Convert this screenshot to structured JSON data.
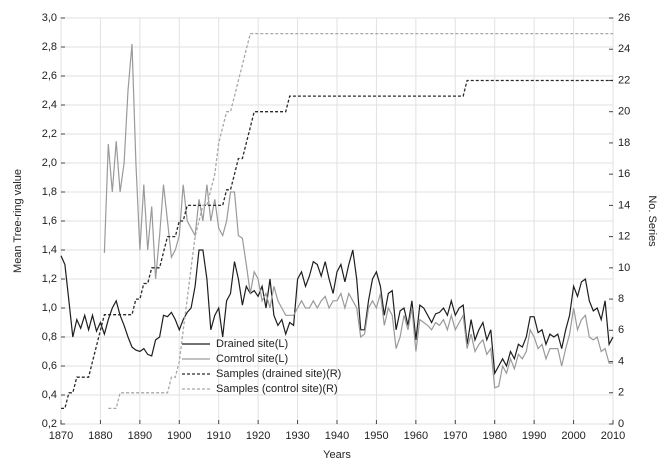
{
  "chart_data": {
    "type": "line",
    "xlabel": "Years",
    "ylabel": "Mean Tree-ring value",
    "y2label": "No. Series",
    "x": [
      1870,
      1871,
      1872,
      1873,
      1874,
      1875,
      1876,
      1877,
      1878,
      1879,
      1880,
      1881,
      1882,
      1883,
      1884,
      1885,
      1886,
      1887,
      1888,
      1889,
      1890,
      1891,
      1892,
      1893,
      1894,
      1895,
      1896,
      1897,
      1898,
      1899,
      1900,
      1901,
      1902,
      1903,
      1904,
      1905,
      1906,
      1907,
      1908,
      1909,
      1910,
      1911,
      1912,
      1913,
      1914,
      1915,
      1916,
      1917,
      1918,
      1919,
      1920,
      1921,
      1922,
      1923,
      1924,
      1925,
      1926,
      1927,
      1928,
      1929,
      1930,
      1931,
      1932,
      1933,
      1934,
      1935,
      1936,
      1937,
      1938,
      1939,
      1940,
      1941,
      1942,
      1943,
      1944,
      1945,
      1946,
      1947,
      1948,
      1949,
      1950,
      1951,
      1952,
      1953,
      1954,
      1955,
      1956,
      1957,
      1958,
      1959,
      1960,
      1961,
      1962,
      1963,
      1964,
      1965,
      1966,
      1967,
      1968,
      1969,
      1970,
      1971,
      1972,
      1973,
      1974,
      1975,
      1976,
      1977,
      1978,
      1979,
      1980,
      1981,
      1982,
      1983,
      1984,
      1985,
      1986,
      1987,
      1988,
      1989,
      1990,
      1991,
      1992,
      1993,
      1994,
      1995,
      1996,
      1997,
      1998,
      1999,
      2000,
      2001,
      2002,
      2003,
      2004,
      2005,
      2006,
      2007,
      2008,
      2009,
      2010
    ],
    "series": [
      {
        "name": "Drained site(L)",
        "color": "#1e1e1e",
        "line_style": "solid",
        "axis": "y",
        "values": [
          1.36,
          1.3,
          1.05,
          0.8,
          0.92,
          0.86,
          0.95,
          0.85,
          0.95,
          0.84,
          0.9,
          0.82,
          0.92,
          1.0,
          1.05,
          0.95,
          0.88,
          0.8,
          0.73,
          0.71,
          0.7,
          0.72,
          0.68,
          0.67,
          0.78,
          0.8,
          0.95,
          0.94,
          0.97,
          0.92,
          0.85,
          0.92,
          0.97,
          1.0,
          1.15,
          1.4,
          1.4,
          1.2,
          0.85,
          0.95,
          1.0,
          0.8,
          1.05,
          1.1,
          1.32,
          1.2,
          1.02,
          1.15,
          1.1,
          1.12,
          1.08,
          1.15,
          1.0,
          1.2,
          0.95,
          0.88,
          0.92,
          0.82,
          0.9,
          0.88,
          1.2,
          1.25,
          1.15,
          1.22,
          1.32,
          1.3,
          1.22,
          1.32,
          1.2,
          1.1,
          1.25,
          1.3,
          1.18,
          1.3,
          1.4,
          1.2,
          0.85,
          0.85,
          1.05,
          1.2,
          1.25,
          1.15,
          0.95,
          1.1,
          1.12,
          0.85,
          0.98,
          1.0,
          0.88,
          1.05,
          0.78,
          1.02,
          1.0,
          0.95,
          0.9,
          0.96,
          0.97,
          1.0,
          0.95,
          1.05,
          0.95,
          1.0,
          1.02,
          0.75,
          0.92,
          0.78,
          0.85,
          0.9,
          0.78,
          0.85,
          0.55,
          0.6,
          0.65,
          0.6,
          0.7,
          0.65,
          0.75,
          0.73,
          0.8,
          0.94,
          0.94,
          0.83,
          0.85,
          0.75,
          0.82,
          0.8,
          0.82,
          0.72,
          0.85,
          0.95,
          1.15,
          1.08,
          1.18,
          1.2,
          1.05,
          0.98,
          1.0,
          0.92,
          1.05,
          0.75,
          0.8
        ]
      },
      {
        "name": "Comtrol site(L)",
        "color": "#9a9a9a",
        "line_style": "solid",
        "axis": "y",
        "values": [
          null,
          null,
          null,
          null,
          null,
          null,
          null,
          null,
          null,
          null,
          null,
          1.38,
          2.13,
          1.8,
          2.15,
          1.8,
          2.0,
          2.5,
          2.82,
          2.0,
          1.4,
          1.85,
          1.4,
          1.7,
          1.2,
          1.5,
          1.85,
          1.6,
          1.35,
          1.4,
          1.5,
          1.85,
          1.6,
          1.55,
          1.5,
          1.75,
          1.6,
          1.85,
          1.6,
          1.75,
          1.55,
          1.5,
          1.6,
          1.8,
          1.8,
          1.5,
          1.48,
          1.3,
          1.1,
          1.25,
          1.2,
          1.05,
          1.1,
          1.0,
          1.15,
          1.05,
          1.0,
          0.95,
          0.95,
          0.95,
          1.0,
          1.05,
          1.0,
          1.0,
          1.05,
          1.0,
          1.05,
          1.08,
          1.0,
          1.05,
          1.05,
          1.1,
          1.0,
          1.1,
          1.05,
          1.0,
          0.8,
          0.82,
          1.0,
          1.05,
          1.0,
          1.1,
          0.88,
          1.0,
          0.95,
          0.72,
          0.8,
          0.95,
          0.85,
          1.0,
          0.7,
          0.92,
          0.9,
          0.88,
          0.85,
          0.9,
          0.88,
          0.92,
          0.85,
          0.95,
          0.85,
          0.9,
          0.95,
          0.72,
          0.82,
          0.7,
          0.75,
          0.78,
          0.68,
          0.72,
          0.45,
          0.46,
          0.6,
          0.55,
          0.65,
          0.58,
          0.68,
          0.65,
          0.7,
          0.85,
          0.8,
          0.72,
          0.75,
          0.65,
          0.72,
          0.72,
          0.72,
          0.6,
          0.72,
          0.82,
          1.0,
          0.85,
          0.92,
          0.95,
          0.8,
          0.78,
          0.8,
          0.7,
          0.72,
          0.62,
          0.62
        ]
      },
      {
        "name": "Samples (drained site)(R)",
        "color": "#2a2a2a",
        "line_style": "dashed",
        "axis": "y2",
        "values": [
          1,
          1,
          2,
          2,
          3,
          3,
          3,
          3,
          4,
          5,
          6,
          7,
          7,
          7,
          7,
          7,
          7,
          7,
          7,
          8,
          8,
          9,
          9,
          10,
          10,
          10,
          11,
          12,
          12,
          12,
          13,
          13,
          14,
          14,
          14,
          14,
          14,
          14,
          14,
          14,
          14,
          14,
          15,
          15,
          16,
          17,
          17,
          18,
          19,
          20,
          20,
          20,
          20,
          20,
          20,
          20,
          20,
          20,
          21,
          21,
          21,
          21,
          21,
          21,
          21,
          21,
          21,
          21,
          21,
          21,
          21,
          21,
          21,
          21,
          21,
          21,
          21,
          21,
          21,
          21,
          21,
          21,
          21,
          21,
          21,
          21,
          21,
          21,
          21,
          21,
          21,
          21,
          21,
          21,
          21,
          21,
          21,
          21,
          21,
          21,
          21,
          21,
          21,
          22,
          22,
          22,
          22,
          22,
          22,
          22,
          22,
          22,
          22,
          22,
          22,
          22,
          22,
          22,
          22,
          22,
          22,
          22,
          22,
          22,
          22,
          22,
          22,
          22,
          22,
          22,
          22,
          22,
          22,
          22,
          22,
          22,
          22,
          22,
          22,
          22,
          22
        ]
      },
      {
        "name": "Samples (control site)(R)",
        "color": "#a8a8a8",
        "line_style": "dashed",
        "axis": "y2",
        "values": [
          null,
          null,
          null,
          null,
          null,
          null,
          null,
          null,
          null,
          null,
          null,
          null,
          1,
          1,
          1,
          2,
          2,
          2,
          2,
          2,
          2,
          2,
          2,
          2,
          2,
          2,
          2,
          2,
          3,
          3,
          4,
          6,
          8,
          10,
          12,
          13,
          14,
          14,
          15,
          16,
          18,
          19,
          20,
          20,
          21,
          22,
          23,
          24,
          25,
          25,
          25,
          25,
          25,
          25,
          25,
          25,
          25,
          25,
          25,
          25,
          25,
          25,
          25,
          25,
          25,
          25,
          25,
          25,
          25,
          25,
          25,
          25,
          25,
          25,
          25,
          25,
          25,
          25,
          25,
          25,
          25,
          25,
          25,
          25,
          25,
          25,
          25,
          25,
          25,
          25,
          25,
          25,
          25,
          25,
          25,
          25,
          25,
          25,
          25,
          25,
          25,
          25,
          25,
          25,
          25,
          25,
          25,
          25,
          25,
          25,
          25,
          25,
          25,
          25,
          25,
          25,
          25,
          25,
          25,
          25,
          25,
          25,
          25,
          25,
          25,
          25,
          25,
          25,
          25,
          25,
          25,
          25,
          25,
          25,
          25,
          25,
          25,
          25,
          25,
          25,
          25
        ]
      }
    ],
    "xlim": [
      1870,
      2010
    ],
    "xticks": [
      1870,
      1880,
      1890,
      1900,
      1910,
      1920,
      1930,
      1940,
      1950,
      1960,
      1970,
      1980,
      1990,
      2000,
      2010
    ],
    "ylim": [
      0.2,
      3.0
    ],
    "yticks": [
      {
        "value": 0.2,
        "label": "0,2"
      },
      {
        "value": 0.4,
        "label": "0,4"
      },
      {
        "value": 0.6,
        "label": "0,6"
      },
      {
        "value": 0.8,
        "label": "0,8"
      },
      {
        "value": 1.0,
        "label": "1,0"
      },
      {
        "value": 1.2,
        "label": "1,2"
      },
      {
        "value": 1.4,
        "label": "1,4"
      },
      {
        "value": 1.6,
        "label": "1,6"
      },
      {
        "value": 1.8,
        "label": "1,8"
      },
      {
        "value": 2.0,
        "label": "2,0"
      },
      {
        "value": 2.2,
        "label": "2,2"
      },
      {
        "value": 2.4,
        "label": "2,4"
      },
      {
        "value": 2.6,
        "label": "2,6"
      },
      {
        "value": 2.8,
        "label": "2,8"
      },
      {
        "value": 3.0,
        "label": "3,0"
      }
    ],
    "y2lim": [
      0,
      26
    ],
    "y2ticks": [
      0,
      2,
      4,
      6,
      8,
      10,
      12,
      14,
      16,
      18,
      20,
      22,
      24,
      26
    ],
    "grid": true,
    "legend": "lower center"
  }
}
